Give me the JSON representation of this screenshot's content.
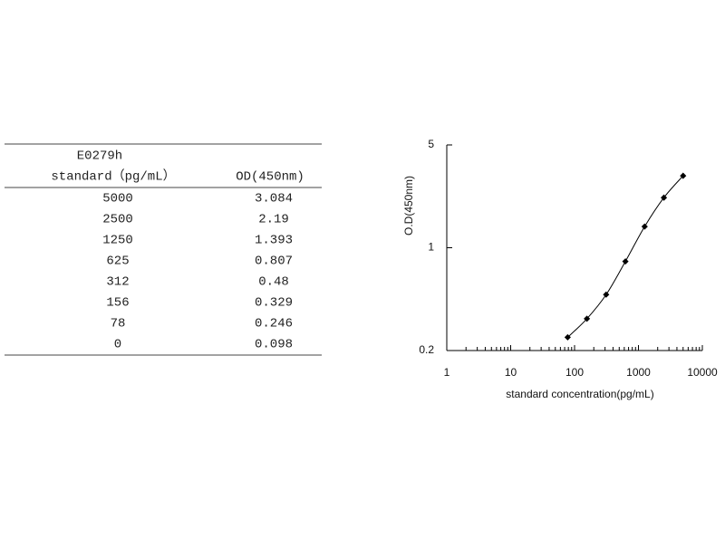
{
  "table": {
    "title": "E0279h",
    "columns": [
      "standard（pg/mL）",
      "OD(450nm)"
    ],
    "rows": [
      [
        "5000",
        "3.084"
      ],
      [
        "2500",
        "2.19"
      ],
      [
        "1250",
        "1.393"
      ],
      [
        "625",
        "0.807"
      ],
      [
        "312",
        "0.48"
      ],
      [
        "156",
        "0.329"
      ],
      [
        "78",
        "0.246"
      ],
      [
        "0",
        "0.098"
      ]
    ]
  },
  "chart_data": {
    "type": "line",
    "x_label": "standard concentration(pg/mL)",
    "y_label": "O.D(450nm)",
    "x": [
      78,
      156,
      312,
      625,
      1250,
      2500,
      5000
    ],
    "values": [
      0.246,
      0.329,
      0.48,
      0.807,
      1.393,
      2.19,
      3.084
    ],
    "color": "#000000",
    "x_log": true,
    "y_log": true,
    "xlim": [
      1,
      10000
    ],
    "xticks": [
      1,
      10,
      100,
      1000,
      10000
    ],
    "ylim": [
      0.2,
      5
    ],
    "yticks": [
      0.2,
      1,
      5
    ]
  }
}
